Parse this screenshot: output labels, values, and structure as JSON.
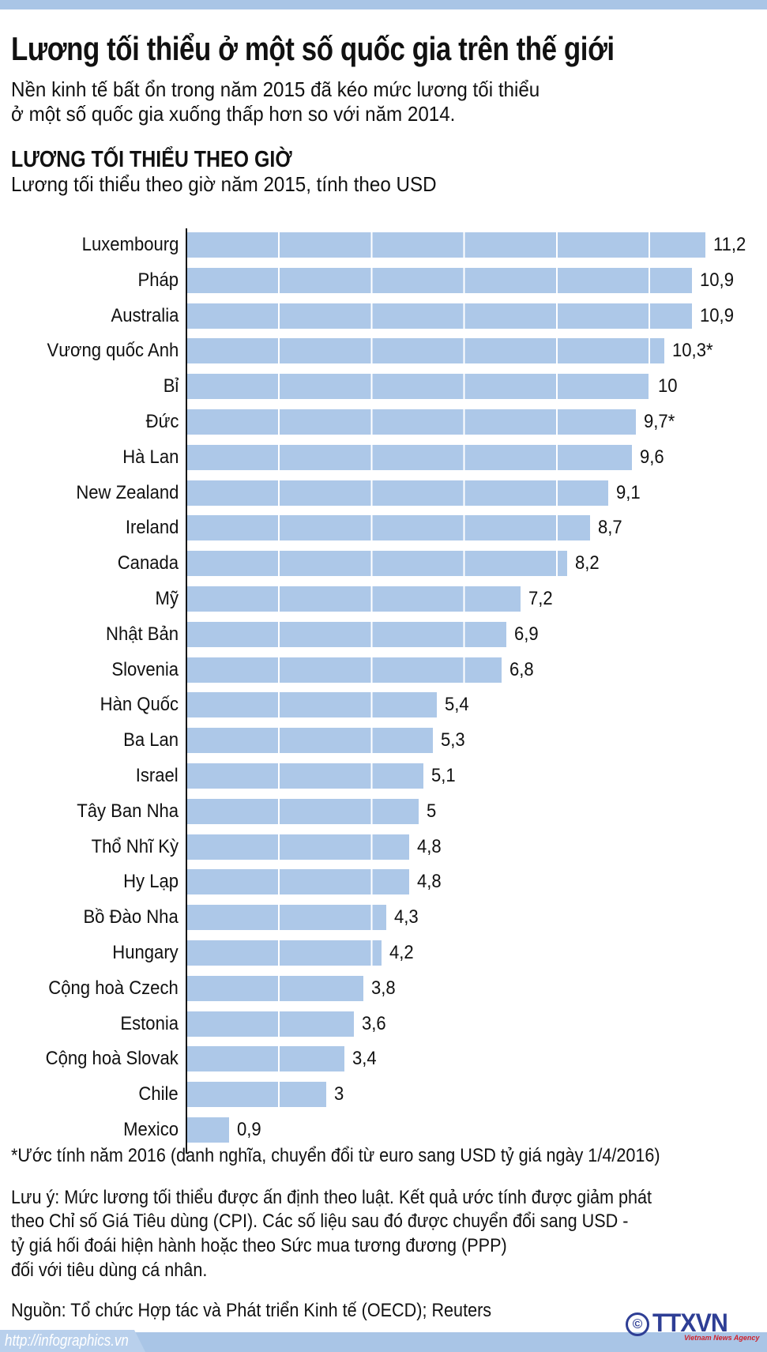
{
  "header": {
    "title": "Lương tối thiểu ở một số quốc gia trên thế giới",
    "subtitle_lines": [
      "Nền kinh tế bất ổn trong năm 2015 đã kéo mức lương tối thiểu",
      "ở một số quốc gia xuống thấp hơn so với năm 2014."
    ]
  },
  "chart_data": {
    "type": "bar",
    "orientation": "horizontal",
    "title": "LƯƠNG TỐI THIỂU THEO GIỜ",
    "subtitle": "Lương tối thiểu theo giờ năm 2015, tính theo USD",
    "xlabel": "",
    "ylabel": "",
    "xlim": [
      0,
      12
    ],
    "grid": true,
    "grid_step": 2,
    "categories": [
      "Luxembourg",
      "Pháp",
      "Australia",
      "Vương quốc Anh",
      "Bỉ",
      "Đức",
      "Hà Lan",
      "New Zealand",
      "Ireland",
      "Canada",
      "Mỹ",
      "Nhật Bản",
      "Slovenia",
      "Hàn Quốc",
      "Ba Lan",
      "Israel",
      "Tây Ban Nha",
      "Thổ Nhĩ Kỳ",
      "Hy Lạp",
      "Bồ Đào Nha",
      "Hungary",
      "Cộng hoà Czech",
      "Estonia",
      "Cộng hoà Slovak",
      "Chile",
      "Mexico"
    ],
    "values": [
      11.2,
      10.9,
      10.9,
      10.3,
      10,
      9.7,
      9.6,
      9.1,
      8.7,
      8.2,
      7.2,
      6.9,
      6.8,
      5.4,
      5.3,
      5.1,
      5,
      4.8,
      4.8,
      4.3,
      4.2,
      3.8,
      3.6,
      3.4,
      3,
      0.9
    ],
    "value_labels": [
      "11,2",
      "10,9",
      "10,9",
      "10,3*",
      "10",
      "9,7*",
      "9,6",
      "9,1",
      "8,7",
      "8,2",
      "7,2",
      "6,9",
      "6,8",
      "5,4",
      "5,3",
      "5,1",
      "5",
      "4,8",
      "4,8",
      "4,3",
      "4,2",
      "3,8",
      "3,6",
      "3,4",
      "3",
      "0,9"
    ],
    "bar_color": "#adc8e8"
  },
  "footnote": "*Ước tính năm 2016 (danh nghĩa, chuyển đổi từ euro sang USD tỷ giá ngày 1/4/2016)",
  "note_lines": [
    "Lưu ý: Mức lương tối thiểu được ấn định theo luật. Kết quả ước tính được giảm phát",
    "theo Chỉ số Giá Tiêu dùng (CPI). Các số liệu sau đó được chuyển đổi sang USD -",
    "tỷ giá hối đoái hiện hành hoặc theo Sức mua tương đương (PPP)",
    "đối với tiêu dùng cá nhân."
  ],
  "source": "Nguồn: Tổ chức Hợp tác và Phát triển Kinh tế (OECD); Reuters",
  "footer": {
    "url": "http://infographics.vn",
    "copyright_symbol": "©",
    "logo_text": "TTXVN",
    "logo_subtext": "Vietnam News Agency"
  }
}
